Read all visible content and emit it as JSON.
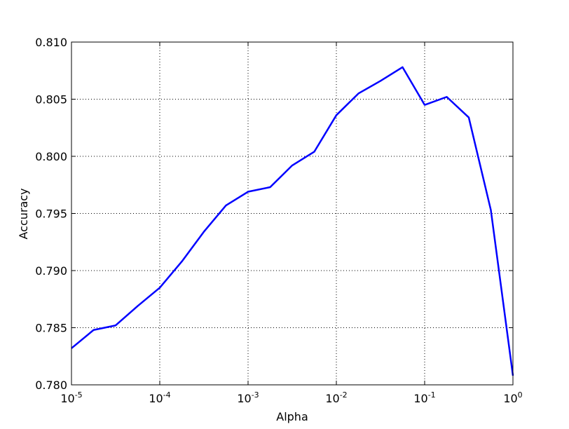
{
  "chart_data": {
    "type": "line",
    "title": "",
    "xlabel": "Alpha",
    "ylabel": "Accuracy",
    "xscale": "log",
    "xlim": [
      1e-05,
      1
    ],
    "ylim": [
      0.78,
      0.81
    ],
    "grid": true,
    "grid_style": "dotted",
    "line_color": "#0000ff",
    "x_ticks": [
      {
        "value": 1e-05,
        "base": "10",
        "exp": "-5"
      },
      {
        "value": 0.0001,
        "base": "10",
        "exp": "-4"
      },
      {
        "value": 0.001,
        "base": "10",
        "exp": "-3"
      },
      {
        "value": 0.01,
        "base": "10",
        "exp": "-2"
      },
      {
        "value": 0.1,
        "base": "10",
        "exp": "-1"
      },
      {
        "value": 1,
        "base": "10",
        "exp": "0"
      }
    ],
    "y_ticks": [
      {
        "value": 0.78,
        "label": "0.780"
      },
      {
        "value": 0.785,
        "label": "0.785"
      },
      {
        "value": 0.79,
        "label": "0.790"
      },
      {
        "value": 0.795,
        "label": "0.795"
      },
      {
        "value": 0.8,
        "label": "0.800"
      },
      {
        "value": 0.805,
        "label": "0.805"
      },
      {
        "value": 0.81,
        "label": "0.810"
      }
    ],
    "series": [
      {
        "x": [
          1e-05,
          1.78e-05,
          3.16e-05,
          5.62e-05,
          0.0001,
          0.000178,
          0.000316,
          0.000562,
          0.001,
          0.00178,
          0.00316,
          0.00562,
          0.01,
          0.0178,
          0.0316,
          0.0562,
          0.1,
          0.178,
          0.316,
          0.562,
          1
        ],
        "y": [
          0.7832,
          0.7848,
          0.7852,
          0.7869,
          0.7885,
          0.7908,
          0.7934,
          0.7957,
          0.7969,
          0.7973,
          0.7992,
          0.8004,
          0.8036,
          0.8055,
          0.8066,
          0.8078,
          0.8045,
          0.8052,
          0.8034,
          0.7953,
          0.7808
        ]
      }
    ]
  }
}
